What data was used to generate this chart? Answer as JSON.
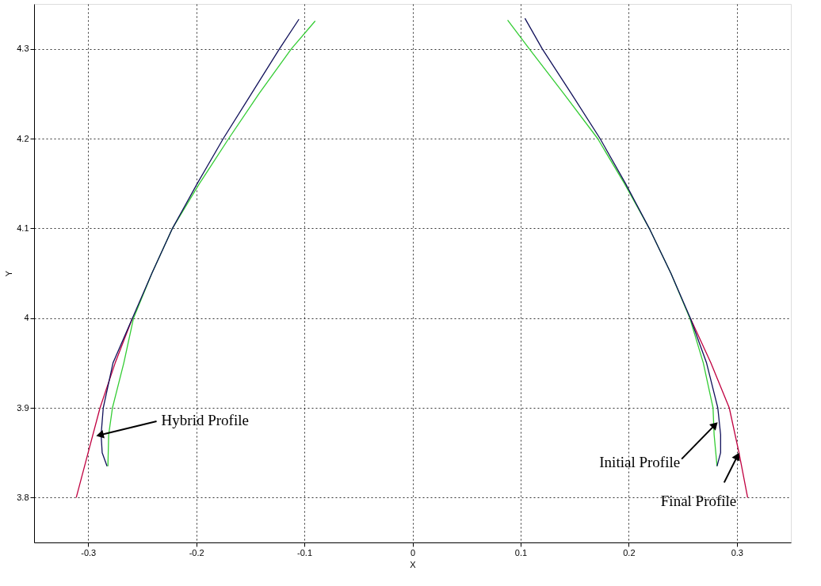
{
  "chart_data": {
    "type": "line",
    "xlabel": "X",
    "ylabel": "Y",
    "xlim": [
      -0.35,
      0.35
    ],
    "ylim": [
      3.75,
      4.35
    ],
    "xticks": [
      -0.3,
      -0.2,
      -0.1,
      0,
      0.1,
      0.2,
      0.3
    ],
    "yticks": [
      3.8,
      3.9,
      4,
      4.1,
      4.2,
      4.3
    ],
    "grid": true,
    "marker": "none",
    "series": [
      {
        "color": "#c00040",
        "x": [
          -0.259,
          -0.275,
          -0.289,
          -0.3,
          -0.311
        ],
        "values": [
          4.0,
          3.95,
          3.9,
          3.85,
          3.8
        ]
      },
      {
        "color": "#c00040",
        "x": [
          0.257,
          0.276,
          0.293,
          0.302,
          0.31
        ],
        "values": [
          4.0,
          3.95,
          3.9,
          3.85,
          3.8
        ]
      },
      {
        "color": "#33cc33",
        "x": [
          -0.09,
          -0.112,
          -0.142,
          -0.17,
          -0.197,
          -0.222,
          -0.241,
          -0.258,
          -0.267,
          -0.2775,
          -0.281,
          -0.2817
        ],
        "values": [
          4.331,
          4.3,
          4.25,
          4.2,
          4.15,
          4.1,
          4.05,
          4.0,
          3.95,
          3.9,
          3.87,
          3.835
        ]
      },
      {
        "color": "#33cc33",
        "x": [
          0.088,
          0.108,
          0.14,
          0.1713,
          0.196,
          0.219,
          0.239,
          0.2565,
          0.269,
          0.278,
          0.279,
          0.2817
        ],
        "values": [
          4.332,
          4.3,
          4.25,
          4.2,
          4.15,
          4.1,
          4.05,
          4.0,
          3.95,
          3.9,
          3.87,
          3.835
        ]
      },
      {
        "color": "#10105a",
        "x": [
          -0.105,
          -0.123,
          -0.149,
          -0.175,
          -0.199,
          -0.222,
          -0.241,
          -0.259,
          -0.277,
          -0.286,
          -0.288,
          -0.287,
          -0.2825
        ],
        "values": [
          4.333,
          4.3,
          4.25,
          4.2,
          4.15,
          4.1,
          4.05,
          4.0,
          3.95,
          3.9,
          3.87,
          3.85,
          3.835
        ]
      },
      {
        "color": "#10105a",
        "x": [
          0.104,
          0.12,
          0.147,
          0.1735,
          0.197,
          0.219,
          0.239,
          0.257,
          0.272,
          0.2824,
          0.285,
          0.285,
          0.2817
        ],
        "values": [
          4.334,
          4.3,
          4.25,
          4.2,
          4.15,
          4.1,
          4.05,
          4.0,
          3.95,
          3.9,
          3.87,
          3.85,
          3.835
        ]
      }
    ],
    "annotations": [
      {
        "text": "Hybrid Profile",
        "x": -0.288,
        "y": 3.87
      },
      {
        "text": "Initial Profile",
        "x": 0.279,
        "y": 3.88
      },
      {
        "text": "Final Profile",
        "x": 0.3,
        "y": 3.845
      }
    ]
  }
}
